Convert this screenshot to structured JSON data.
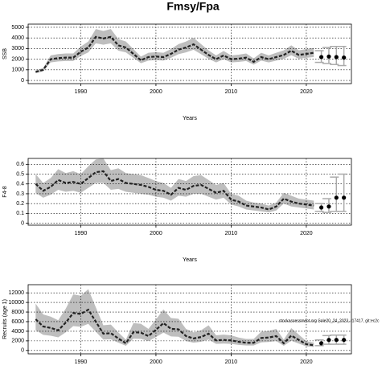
{
  "title": "Fmsy/Fpa",
  "chart_data": [
    {
      "type": "line",
      "ylabel": "SSB",
      "xlabel": "Years",
      "color": "#222222",
      "band_color": "#bebebe",
      "error_color": "#aaaaaa",
      "xlim": [
        1983,
        2026
      ],
      "xticks": [
        1990,
        2000,
        2010,
        2020
      ],
      "ylim": [
        -300,
        5300
      ],
      "yticks": [
        0,
        1000,
        2000,
        3000,
        4000,
        5000
      ],
      "grid": true,
      "x": [
        1984,
        1985,
        1986,
        1987,
        1988,
        1989,
        1990,
        1991,
        1992,
        1993,
        1994,
        1995,
        1996,
        1997,
        1998,
        1999,
        2000,
        2001,
        2002,
        2003,
        2004,
        2005,
        2006,
        2007,
        2008,
        2009,
        2010,
        2011,
        2012,
        2013,
        2014,
        2015,
        2016,
        2017,
        2018,
        2019,
        2020,
        2021
      ],
      "values": [
        800,
        1000,
        2000,
        2100,
        2150,
        2150,
        2700,
        3100,
        4100,
        3950,
        4100,
        3300,
        3100,
        2500,
        1900,
        2200,
        2250,
        2200,
        2500,
        2900,
        3100,
        3400,
        2900,
        2400,
        2000,
        2350,
        2000,
        2050,
        2150,
        1750,
        2200,
        2000,
        2200,
        2400,
        2800,
        2400,
        2500,
        2600
      ],
      "lower": [
        680,
        850,
        1700,
        1790,
        1830,
        1830,
        2300,
        2640,
        3490,
        3360,
        3490,
        2800,
        2640,
        2130,
        1620,
        1870,
        1910,
        1870,
        2130,
        2470,
        2640,
        2890,
        2470,
        2040,
        1700,
        2000,
        1700,
        1740,
        1830,
        1490,
        1870,
        1700,
        1870,
        2040,
        2380,
        2040,
        2130,
        2210
      ],
      "upper": [
        940,
        1180,
        2360,
        2480,
        2540,
        2540,
        3190,
        3660,
        4840,
        4660,
        4840,
        3890,
        3660,
        2950,
        2240,
        2600,
        2660,
        2600,
        2950,
        3420,
        3660,
        4010,
        3420,
        2830,
        2360,
        2770,
        2360,
        2420,
        2540,
        2070,
        2600,
        2360,
        2600,
        2830,
        3300,
        2830,
        2950,
        3070
      ],
      "projection": {
        "x": [
          2022,
          2023,
          2024,
          2025
        ],
        "values": [
          2200,
          2250,
          2200,
          2150
        ],
        "lower": [
          1700,
          1600,
          1500,
          1400
        ],
        "upper": [
          2800,
          3100,
          3200,
          3200
        ]
      }
    },
    {
      "type": "line",
      "ylabel": "F4-8",
      "xlabel": "Years",
      "color": "#222222",
      "band_color": "#bebebe",
      "error_color": "#aaaaaa",
      "xlim": [
        1983,
        2026
      ],
      "xticks": [
        1990,
        2000,
        2010,
        2020
      ],
      "ylim": [
        -0.02,
        0.66
      ],
      "yticks": [
        0,
        0.1,
        0.2,
        0.3,
        0.4,
        0.5,
        0.6
      ],
      "grid": true,
      "x": [
        1984,
        1985,
        1986,
        1987,
        1988,
        1989,
        1990,
        1991,
        1992,
        1993,
        1994,
        1995,
        1996,
        1997,
        1998,
        1999,
        2000,
        2001,
        2002,
        2003,
        2004,
        2005,
        2006,
        2007,
        2008,
        2009,
        2010,
        2011,
        2012,
        2013,
        2014,
        2015,
        2016,
        2017,
        2018,
        2019,
        2020,
        2021
      ],
      "values": [
        0.4,
        0.33,
        0.37,
        0.44,
        0.41,
        0.42,
        0.4,
        0.46,
        0.52,
        0.53,
        0.43,
        0.45,
        0.41,
        0.4,
        0.39,
        0.37,
        0.34,
        0.33,
        0.29,
        0.36,
        0.34,
        0.38,
        0.39,
        0.35,
        0.31,
        0.33,
        0.24,
        0.22,
        0.18,
        0.17,
        0.16,
        0.14,
        0.17,
        0.25,
        0.22,
        0.2,
        0.19,
        0.18
      ],
      "lower": [
        0.31,
        0.26,
        0.29,
        0.34,
        0.32,
        0.33,
        0.31,
        0.36,
        0.41,
        0.41,
        0.34,
        0.35,
        0.32,
        0.31,
        0.3,
        0.29,
        0.27,
        0.26,
        0.23,
        0.28,
        0.27,
        0.3,
        0.3,
        0.27,
        0.24,
        0.26,
        0.19,
        0.17,
        0.14,
        0.13,
        0.12,
        0.11,
        0.13,
        0.2,
        0.17,
        0.16,
        0.15,
        0.14
      ],
      "upper": [
        0.5,
        0.41,
        0.46,
        0.55,
        0.51,
        0.53,
        0.5,
        0.58,
        0.65,
        0.66,
        0.54,
        0.56,
        0.51,
        0.5,
        0.49,
        0.46,
        0.43,
        0.41,
        0.36,
        0.45,
        0.43,
        0.48,
        0.49,
        0.44,
        0.39,
        0.41,
        0.3,
        0.28,
        0.23,
        0.21,
        0.2,
        0.18,
        0.21,
        0.31,
        0.28,
        0.25,
        0.24,
        0.23
      ],
      "projection": {
        "x": [
          2022,
          2023,
          2024,
          2025
        ],
        "values": [
          0.16,
          0.17,
          0.26,
          0.26
        ],
        "lower": [
          0.12,
          0.11,
          0.12,
          0.12
        ],
        "upper": [
          0.2,
          0.25,
          0.47,
          0.5
        ]
      }
    },
    {
      "type": "line",
      "ylabel": "Recruits (age 1)",
      "xlabel": "Years",
      "color": "#222222",
      "band_color": "#bebebe",
      "error_color": "#aaaaaa",
      "annotation": "stockassessment.org Sole20_24_2023, r17417, git:ec2c",
      "xlim": [
        1983,
        2026
      ],
      "xticks": [
        1990,
        2000,
        2010,
        2020
      ],
      "ylim": [
        -700,
        13700
      ],
      "yticks": [
        0,
        2000,
        4000,
        6000,
        8000,
        10000,
        12000
      ],
      "grid": true,
      "x": [
        1984,
        1985,
        1986,
        1987,
        1988,
        1989,
        1990,
        1991,
        1992,
        1993,
        1994,
        1995,
        1996,
        1997,
        1998,
        1999,
        2000,
        2001,
        2002,
        2003,
        2004,
        2005,
        2006,
        2007,
        2008,
        2009,
        2010,
        2011,
        2012,
        2013,
        2014,
        2015,
        2016,
        2017,
        2018,
        2019,
        2020,
        2021
      ],
      "values": [
        6500,
        5000,
        4700,
        4200,
        5800,
        7800,
        7600,
        8500,
        6000,
        3500,
        3600,
        2500,
        1500,
        3800,
        3700,
        3000,
        4300,
        5700,
        4500,
        4400,
        3000,
        2500,
        2800,
        3500,
        2100,
        2200,
        2100,
        1800,
        1600,
        1600,
        2600,
        2700,
        3000,
        1500,
        3100,
        2200,
        1300,
        1100
      ],
      "lower": [
        4230,
        3250,
        3060,
        2730,
        3770,
        5070,
        4940,
        5530,
        3900,
        2280,
        2340,
        1630,
        980,
        2470,
        2410,
        1950,
        2800,
        3710,
        2930,
        2860,
        1950,
        1630,
        1820,
        2280,
        1370,
        1430,
        1370,
        1170,
        1040,
        1040,
        1690,
        1760,
        1950,
        980,
        2020,
        1430,
        850,
        720
      ],
      "upper": [
        9750,
        7500,
        7050,
        6300,
        8700,
        11700,
        11400,
        12750,
        9000,
        5250,
        5400,
        3750,
        2250,
        5700,
        5550,
        4500,
        6450,
        8550,
        6750,
        6600,
        4500,
        3750,
        4200,
        5250,
        3150,
        3300,
        3150,
        2700,
        2400,
        2400,
        3900,
        4050,
        4500,
        2250,
        4650,
        3300,
        1950,
        1650
      ],
      "projection": {
        "x": [
          2022,
          2023,
          2024,
          2025
        ],
        "values": [
          1500,
          2200,
          2200,
          2200
        ],
        "lower": [
          1000,
          1300,
          1300,
          1300
        ],
        "upper": [
          2200,
          3100,
          3200,
          3200
        ]
      }
    }
  ]
}
